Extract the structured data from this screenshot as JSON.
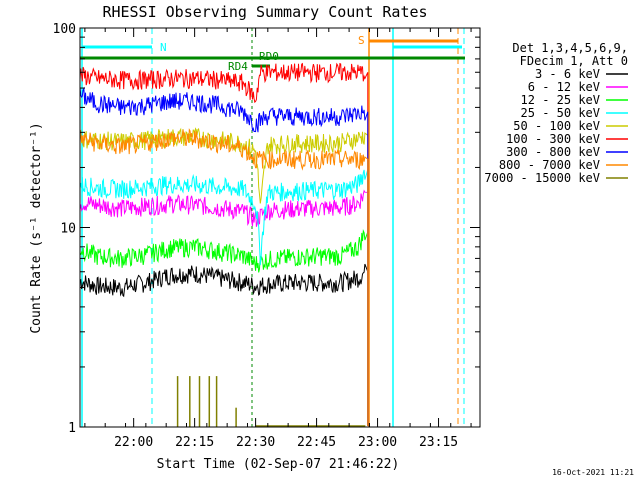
{
  "chart_data": {
    "type": "line",
    "title": "RHESSI Observing Summary Count Rates",
    "xlabel": "Start Time (02-Sep-07 21:46:22)",
    "ylabel": "Count Rate (s⁻¹ detector⁻¹)",
    "y_scale": "log",
    "ylim": [
      1,
      100
    ],
    "xlim_minutes": [
      21.78,
      23.42
    ],
    "x_ticks": [
      {
        "label": "22:00",
        "v": 22.0
      },
      {
        "label": "22:15",
        "v": 22.25
      },
      {
        "label": "22:30",
        "v": 22.5
      },
      {
        "label": "22:45",
        "v": 22.75
      },
      {
        "label": "23:00",
        "v": 23.0
      },
      {
        "label": "23:15",
        "v": 23.25
      }
    ],
    "y_ticks": [
      {
        "label": "1",
        "v": 1
      },
      {
        "label": "10",
        "v": 10
      },
      {
        "label": "100",
        "v": 100
      }
    ],
    "legend_title_1": "Det 1,3,4,5,6,9,",
    "legend_title_2": "FDecim 1, Att 0",
    "series": [
      {
        "name": "3 - 6 keV",
        "color": "#000000",
        "points": [
          [
            21.78,
            5.4
          ],
          [
            21.85,
            5.1
          ],
          [
            21.95,
            5.0
          ],
          [
            22.05,
            5.3
          ],
          [
            22.15,
            5.8
          ],
          [
            22.25,
            5.9
          ],
          [
            22.35,
            5.6
          ],
          [
            22.45,
            5.3
          ],
          [
            22.5,
            5.1
          ],
          [
            22.55,
            5.2
          ],
          [
            22.65,
            5.3
          ],
          [
            22.75,
            5.3
          ],
          [
            22.85,
            5.3
          ],
          [
            22.92,
            5.6
          ],
          [
            22.95,
            6.0
          ]
        ]
      },
      {
        "name": "6 - 12 keV",
        "color": "#ff00ff",
        "points": [
          [
            21.78,
            13.5
          ],
          [
            21.85,
            13.0
          ],
          [
            21.95,
            12.5
          ],
          [
            22.05,
            12.8
          ],
          [
            22.15,
            13.2
          ],
          [
            22.25,
            13.0
          ],
          [
            22.35,
            12.6
          ],
          [
            22.45,
            12.0
          ],
          [
            22.5,
            11.0
          ],
          [
            22.55,
            12.2
          ],
          [
            22.65,
            12.4
          ],
          [
            22.75,
            12.5
          ],
          [
            22.85,
            12.6
          ],
          [
            22.92,
            13.3
          ],
          [
            22.95,
            15.0
          ]
        ]
      },
      {
        "name": "12 - 25 keV",
        "color": "#00ff00",
        "points": [
          [
            21.78,
            7.8
          ],
          [
            21.85,
            7.2
          ],
          [
            21.95,
            7.0
          ],
          [
            22.05,
            7.3
          ],
          [
            22.15,
            7.9
          ],
          [
            22.25,
            8.0
          ],
          [
            22.35,
            7.6
          ],
          [
            22.45,
            7.2
          ],
          [
            22.5,
            6.6
          ],
          [
            22.55,
            6.9
          ],
          [
            22.65,
            7.1
          ],
          [
            22.75,
            7.2
          ],
          [
            22.85,
            7.2
          ],
          [
            22.92,
            8.0
          ],
          [
            22.95,
            9.5
          ]
        ]
      },
      {
        "name": "25 - 50 keV",
        "color": "#00ffff",
        "points": [
          [
            21.78,
            16.5
          ],
          [
            21.85,
            15.8
          ],
          [
            21.95,
            15.6
          ],
          [
            22.05,
            16.0
          ],
          [
            22.15,
            16.5
          ],
          [
            22.25,
            16.4
          ],
          [
            22.35,
            16.0
          ],
          [
            22.45,
            15.6
          ],
          [
            22.5,
            13.0
          ],
          [
            22.52,
            7.0
          ],
          [
            22.55,
            15.0
          ],
          [
            22.65,
            15.2
          ],
          [
            22.75,
            15.4
          ],
          [
            22.85,
            15.5
          ],
          [
            22.92,
            16.5
          ],
          [
            22.95,
            19.5
          ]
        ]
      },
      {
        "name": "50 - 100 keV",
        "color": "#cccc00",
        "points": [
          [
            21.78,
            28.0
          ],
          [
            21.85,
            27.5
          ],
          [
            21.95,
            27.0
          ],
          [
            22.05,
            27.5
          ],
          [
            22.15,
            28.5
          ],
          [
            22.25,
            28.5
          ],
          [
            22.35,
            27.5
          ],
          [
            22.45,
            26.5
          ],
          [
            22.5,
            24.0
          ],
          [
            22.52,
            12.0
          ],
          [
            22.55,
            26.0
          ],
          [
            22.65,
            26.5
          ],
          [
            22.75,
            26.5
          ],
          [
            22.85,
            26.7
          ],
          [
            22.92,
            28.0
          ],
          [
            22.95,
            29.0
          ]
        ]
      },
      {
        "name": "100 - 300 keV",
        "color": "#ff0000",
        "points": [
          [
            21.78,
            58.0
          ],
          [
            21.85,
            56.0
          ],
          [
            21.95,
            55.0
          ],
          [
            22.05,
            55.0
          ],
          [
            22.15,
            56.0
          ],
          [
            22.25,
            56.0
          ],
          [
            22.35,
            55.0
          ],
          [
            22.45,
            53.0
          ],
          [
            22.5,
            44.0
          ],
          [
            22.52,
            60.0
          ],
          [
            22.6,
            60.0
          ],
          [
            22.7,
            60.0
          ],
          [
            22.8,
            60.0
          ],
          [
            22.9,
            60.0
          ],
          [
            22.95,
            60.0
          ]
        ]
      },
      {
        "name": "300 - 800 keV",
        "color": "#0000ff",
        "points": [
          [
            21.78,
            46.0
          ],
          [
            21.85,
            42.0
          ],
          [
            21.95,
            40.0
          ],
          [
            22.05,
            41.0
          ],
          [
            22.15,
            43.0
          ],
          [
            22.25,
            43.0
          ],
          [
            22.35,
            41.0
          ],
          [
            22.45,
            38.0
          ],
          [
            22.5,
            33.0
          ],
          [
            22.55,
            36.5
          ],
          [
            22.65,
            36.0
          ],
          [
            22.75,
            36.0
          ],
          [
            22.85,
            36.0
          ],
          [
            22.92,
            37.5
          ],
          [
            22.95,
            38.0
          ]
        ]
      },
      {
        "name": "800 - 7000 keV",
        "color": "#ff8800",
        "points": [
          [
            21.78,
            28.0
          ],
          [
            21.85,
            26.5
          ],
          [
            21.95,
            25.5
          ],
          [
            22.05,
            26.5
          ],
          [
            22.15,
            28.0
          ],
          [
            22.25,
            28.0
          ],
          [
            22.35,
            26.5
          ],
          [
            22.45,
            25.0
          ],
          [
            22.5,
            22.0
          ],
          [
            22.55,
            22.0
          ],
          [
            22.65,
            22.0
          ],
          [
            22.75,
            22.0
          ],
          [
            22.85,
            22.0
          ],
          [
            22.92,
            22.0
          ],
          [
            22.95,
            22.0
          ]
        ]
      },
      {
        "name": "7000 - 15000 keV",
        "color": "#808000",
        "points": [
          [
            21.78,
            1.0
          ],
          [
            22.95,
            1.0
          ]
        ]
      }
    ],
    "top_markers": [
      {
        "label": "N",
        "color": "#00ffff"
      },
      {
        "label": "RD4",
        "color": "#008800"
      },
      {
        "label": "RD0",
        "color": "#008800"
      },
      {
        "label": "S",
        "color": "#ff8800"
      }
    ],
    "footer_date": "16-Oct-2021 11:21"
  }
}
